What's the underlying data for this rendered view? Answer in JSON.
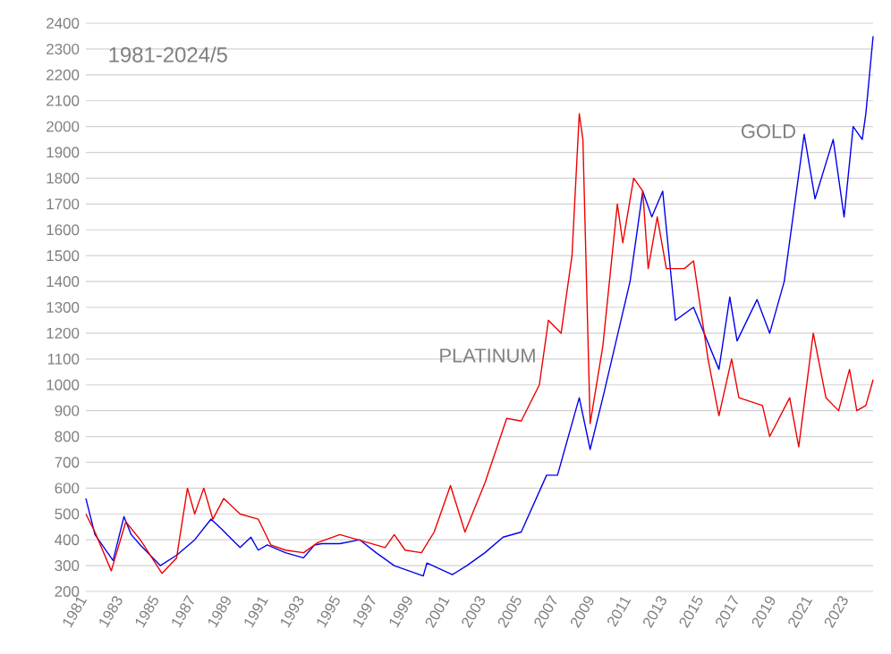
{
  "chart_data": {
    "type": "line",
    "title": "1981-2024/5",
    "xlim": [
      1981,
      2024.4
    ],
    "ylim": [
      200,
      2400
    ],
    "xticks": [
      1981,
      1983,
      1985,
      1987,
      1989,
      1991,
      1993,
      1995,
      1997,
      1999,
      2001,
      2003,
      2005,
      2007,
      2009,
      2011,
      2013,
      2015,
      2017,
      2019,
      2021,
      2023
    ],
    "yticks": [
      200,
      300,
      400,
      500,
      600,
      700,
      800,
      900,
      1000,
      1100,
      1200,
      1300,
      1400,
      1500,
      1600,
      1700,
      1800,
      1900,
      2000,
      2100,
      2200,
      2300,
      2400
    ],
    "grid": "y",
    "legend": false,
    "marker": "none",
    "line_style": "solid",
    "series": [
      {
        "name": "GOLD",
        "color": "#0000ee",
        "x": [
          1981,
          1981.5,
          1982.5,
          1983.1,
          1983.5,
          1984,
          1985.1,
          1986,
          1987,
          1987.9,
          1988.5,
          1989.5,
          1990.1,
          1990.5,
          1991,
          1992,
          1993,
          1993.6,
          1994,
          1995,
          1996.1,
          1997,
          1998,
          1999.6,
          1999.8,
          2001.2,
          2002,
          2003,
          2004,
          2005,
          2006.4,
          2007,
          2008.2,
          2008.8,
          2009.5,
          2010,
          2011,
          2011.7,
          2012.2,
          2012.8,
          2013.5,
          2014.5,
          2015.9,
          2016.5,
          2016.9,
          2018,
          2018.7,
          2019.5,
          2020.6,
          2021.2,
          2022.2,
          2022.8,
          2023.3,
          2023.8,
          2024,
          2024.4
        ],
        "values": [
          560,
          420,
          320,
          490,
          420,
          380,
          300,
          340,
          400,
          480,
          440,
          370,
          410,
          360,
          380,
          350,
          330,
          380,
          385,
          385,
          400,
          350,
          300,
          260,
          310,
          265,
          300,
          350,
          410,
          430,
          650,
          650,
          950,
          750,
          950,
          1100,
          1400,
          1750,
          1650,
          1750,
          1250,
          1300,
          1060,
          1340,
          1170,
          1330,
          1200,
          1400,
          1970,
          1720,
          1950,
          1650,
          2000,
          1950,
          2050,
          2350
        ]
      },
      {
        "name": "PLATINUM",
        "color": "#ee0000",
        "x": [
          1981,
          1981.5,
          1982.4,
          1983.2,
          1984,
          1985.2,
          1986,
          1986.6,
          1987,
          1987.5,
          1988,
          1988.6,
          1989.5,
          1990.5,
          1991.2,
          1992,
          1993,
          1993.8,
          1995,
          1996,
          1997.5,
          1998,
          1998.6,
          1999.5,
          2000.2,
          2001.1,
          2001.9,
          2003,
          2004.2,
          2005,
          2006,
          2006.5,
          2007.2,
          2007.8,
          2008.2,
          2008.4,
          2008.8,
          2009.5,
          2010.3,
          2010.6,
          2011.2,
          2011.7,
          2012,
          2012.5,
          2013,
          2014,
          2014.5,
          2015.3,
          2015.9,
          2016.6,
          2017,
          2018.3,
          2018.7,
          2019.8,
          2020.3,
          2021.1,
          2021.8,
          2022.5,
          2023.1,
          2023.5,
          2024,
          2024.4
        ],
        "values": [
          500,
          430,
          280,
          470,
          400,
          270,
          330,
          600,
          500,
          600,
          480,
          560,
          500,
          480,
          380,
          360,
          350,
          390,
          420,
          400,
          370,
          420,
          360,
          350,
          430,
          610,
          430,
          620,
          870,
          860,
          1000,
          1250,
          1200,
          1500,
          2050,
          1950,
          850,
          1150,
          1700,
          1550,
          1800,
          1750,
          1450,
          1650,
          1450,
          1450,
          1480,
          1100,
          880,
          1100,
          950,
          920,
          800,
          950,
          760,
          1200,
          950,
          900,
          1060,
          900,
          920,
          1020
        ]
      }
    ]
  }
}
